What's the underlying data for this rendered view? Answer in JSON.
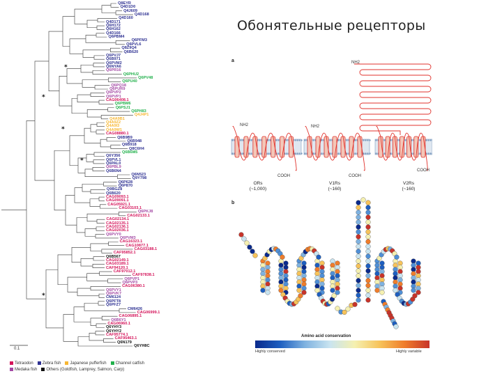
{
  "title": "Обонятельные рецепторы",
  "colors": {
    "tetraodon": "#d4145a",
    "zebrafish": "#2e3192",
    "japanese_pufferfish": "#f7b733",
    "channel_catfish": "#22b14c",
    "medaka": "#a349a4",
    "others": "#111111",
    "receptor_line": "#e0312b",
    "membrane": "#7d9cbf"
  },
  "tree": {
    "leaves": [
      {
        "t": "Q8EYR",
        "c": "zebrafish"
      },
      {
        "t": "Q4D1D0",
        "c": "zebrafish"
      },
      {
        "t": "Q4J609",
        "c": "zebrafish"
      },
      {
        "t": "Q4D168",
        "c": "zebrafish"
      },
      {
        "t": "Q4D160",
        "c": "zebrafish"
      },
      {
        "t": "Q4D171",
        "c": "zebrafish"
      },
      {
        "t": "Q6H172",
        "c": "zebrafish"
      },
      {
        "t": "Q6H162",
        "c": "zebrafish"
      },
      {
        "t": "Q4D166",
        "c": "zebrafish"
      },
      {
        "t": "Q6PBM4",
        "c": "zebrafish"
      },
      {
        "t": "Q6PFM3",
        "c": "zebrafish"
      },
      {
        "t": "Q6PVL6",
        "c": "zebrafish"
      },
      {
        "t": "Q8Z9Q4",
        "c": "zebrafish"
      },
      {
        "t": "Q6B620",
        "c": "zebrafish"
      },
      {
        "t": "Q6PVJ7",
        "c": "zebrafish"
      },
      {
        "t": "Q6B971",
        "c": "zebrafish"
      },
      {
        "t": "Q6PVM2",
        "c": "zebrafish"
      },
      {
        "t": "Q6NYA6",
        "c": "zebrafish"
      },
      {
        "t": "Q6PR16",
        "c": "medaka"
      },
      {
        "t": "Q6PHU2",
        "c": "channel_catfish"
      },
      {
        "t": "Q6PV48",
        "c": "channel_catfish"
      },
      {
        "t": "Q6PU40",
        "c": "channel_catfish"
      },
      {
        "t": "Q6PQ18",
        "c": "medaka"
      },
      {
        "t": "Q6PUR9",
        "c": "medaka"
      },
      {
        "t": "Q6PVP2",
        "c": "medaka"
      },
      {
        "t": "Q6PVP1",
        "c": "medaka"
      },
      {
        "t": "CAG06408.1",
        "c": "tetraodon"
      },
      {
        "t": "Q6PBM6",
        "c": "channel_catfish"
      },
      {
        "t": "Q6PSJ1",
        "c": "channel_catfish"
      },
      {
        "t": "Q6PH83",
        "c": "channel_catfish"
      },
      {
        "t": "Q4J4P1",
        "c": "japanese_pufferfish"
      },
      {
        "t": "Q4A9B1",
        "c": "japanese_pufferfish"
      },
      {
        "t": "Q4A9Z2",
        "c": "japanese_pufferfish"
      },
      {
        "t": "Q4A9I3",
        "c": "japanese_pufferfish"
      },
      {
        "t": "Q4A9W1",
        "c": "japanese_pufferfish"
      },
      {
        "t": "CAG08880.1",
        "c": "tetraodon"
      },
      {
        "t": "Q6B9B9",
        "c": "zebrafish"
      },
      {
        "t": "Q6B948",
        "c": "zebrafish"
      },
      {
        "t": "Q6B918",
        "c": "zebrafish"
      },
      {
        "t": "Q8C6H4",
        "c": "zebrafish"
      },
      {
        "t": "Q6B6M5",
        "c": "channel_catfish"
      },
      {
        "t": "Q6Y356",
        "c": "zebrafish"
      },
      {
        "t": "Q6PVL1",
        "c": "zebrafish"
      },
      {
        "t": "Q6PAL0",
        "c": "zebrafish"
      },
      {
        "t": "Q6PBL9",
        "c": "medaka"
      },
      {
        "t": "Q6B6N4",
        "c": "zebrafish"
      },
      {
        "t": "Q6N523",
        "c": "zebrafish"
      },
      {
        "t": "Q9Y798",
        "c": "zebrafish"
      },
      {
        "t": "Q6P628",
        "c": "zebrafish"
      },
      {
        "t": "Q6P870",
        "c": "zebrafish"
      },
      {
        "t": "Q9BGZ8",
        "c": "zebrafish"
      },
      {
        "t": "Q6B620",
        "c": "zebrafish"
      },
      {
        "t": "CAG09093.1",
        "c": "tetraodon"
      },
      {
        "t": "CAG09091.1",
        "c": "tetraodon"
      },
      {
        "t": "CAG05921.1",
        "c": "tetraodon"
      },
      {
        "t": "CAG03103.1",
        "c": "tetraodon"
      },
      {
        "t": "Q6PKJ8",
        "c": "medaka"
      },
      {
        "t": "CAG02133.1",
        "c": "tetraodon"
      },
      {
        "t": "CAG02134.1",
        "c": "tetraodon"
      },
      {
        "t": "CAG02135.1",
        "c": "tetraodon"
      },
      {
        "t": "CAG02136.1",
        "c": "tetraodon"
      },
      {
        "t": "CAG02036.1",
        "c": "tetraodon"
      },
      {
        "t": "Q6PVY0",
        "c": "medaka"
      },
      {
        "t": "Q6PVM3",
        "c": "medaka"
      },
      {
        "t": "CAG16323.1",
        "c": "tetraodon"
      },
      {
        "t": "CAG10877.1",
        "c": "tetraodon"
      },
      {
        "t": "CAG03188.1",
        "c": "tetraodon"
      },
      {
        "t": "CAF95852.1",
        "c": "tetraodon"
      },
      {
        "t": "Q6B567",
        "c": "others"
      },
      {
        "t": "CAG02149.1",
        "c": "tetraodon"
      },
      {
        "t": "CAG03189.1",
        "c": "tetraodon"
      },
      {
        "t": "CAF94120.1",
        "c": "tetraodon"
      },
      {
        "t": "CAF97012.1",
        "c": "tetraodon"
      },
      {
        "t": "CAF97838.1",
        "c": "tetraodon"
      },
      {
        "t": "Q6PVP1",
        "c": "medaka"
      },
      {
        "t": "Q6PVP3",
        "c": "medaka"
      },
      {
        "t": "CAG06380.1",
        "c": "tetraodon"
      },
      {
        "t": "Q6PVY1",
        "c": "medaka"
      },
      {
        "t": "Q6PVK7",
        "c": "medaka"
      },
      {
        "t": "CM6124",
        "c": "zebrafish"
      },
      {
        "t": "Q6PFT8",
        "c": "zebrafish"
      },
      {
        "t": "Q6PFZ7",
        "c": "zebrafish"
      },
      {
        "t": "CM6426",
        "c": "zebrafish"
      },
      {
        "t": "CAG06999.1",
        "c": "tetraodon"
      },
      {
        "t": "CAG06895.1",
        "c": "tetraodon"
      },
      {
        "t": "Q6B6Y1",
        "c": "medaka"
      },
      {
        "t": "CAG06960.1",
        "c": "tetraodon"
      },
      {
        "t": "Q6YHY3",
        "c": "others"
      },
      {
        "t": "Q6YHY2",
        "c": "others"
      },
      {
        "t": "CAF95774.1",
        "c": "tetraodon"
      },
      {
        "t": "CAF95463.1",
        "c": "tetraodon"
      },
      {
        "t": "Q6N179",
        "c": "others"
      },
      {
        "t": "Q6YH8C",
        "c": "others"
      }
    ],
    "scale": "0.1",
    "legend": [
      [
        {
          "label": "Tetraodon",
          "c": "tetraodon"
        },
        {
          "label": "Zebra fish",
          "c": "zebrafish"
        },
        {
          "label": "Japanese pufferfish",
          "c": "japanese_pufferfish"
        },
        {
          "label": "Channel catfish",
          "c": "channel_catfish"
        }
      ],
      [
        {
          "label": "Medaka fish",
          "c": "medaka"
        },
        {
          "label": "Others (Goldfish, Lamprey, Salmon, Carp)",
          "c": "others"
        }
      ]
    ]
  },
  "panel_a": {
    "letter": "a",
    "nh2_top": "NH2",
    "nh2_left": "NH2",
    "nh2_mid": "NH2",
    "cooh_1": "COOH",
    "cooh_2": "COOH",
    "cooh_3": "COOH",
    "receptors": [
      {
        "name": "ORs",
        "count": "(~1,000)"
      },
      {
        "name": "V1Rs",
        "count": "(~160)"
      },
      {
        "name": "V2Rs",
        "count": "(~160)"
      }
    ]
  },
  "panel_b": {
    "letter": "b",
    "colorbar_title": "Amino acid conservation",
    "low_label": "Highly conserved",
    "high_label": "Highly variable"
  }
}
